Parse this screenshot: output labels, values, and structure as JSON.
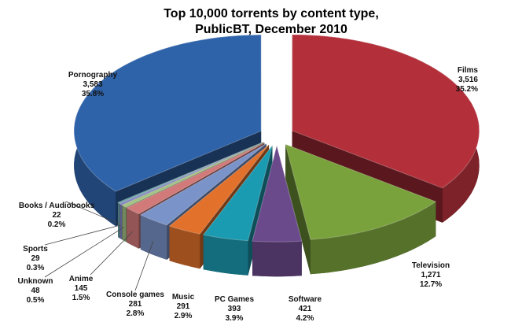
{
  "chart_data": {
    "type": "pie3d",
    "title": [
      "Top 10,000 torrents by content type,",
      "PublicBT, December 2010"
    ],
    "categories": [
      "Films",
      "Television",
      "Software",
      "PC Games",
      "Music",
      "Console games",
      "Anime",
      "Unknown",
      "Sports",
      "Books / Audiobooks",
      "Pornography"
    ],
    "values": [
      3516,
      1271,
      421,
      393,
      291,
      281,
      145,
      48,
      29,
      22,
      3583
    ],
    "value_labels": [
      "3,516",
      "1,271",
      "421",
      "393",
      "291",
      "281",
      "145",
      "48",
      "29",
      "22",
      "3,583"
    ],
    "percent_labels": [
      "35.2%",
      "12.7%",
      "4.2%",
      "3.9%",
      "2.9%",
      "2.8%",
      "1.5%",
      "0.5%",
      "0.3%",
      "0.2%",
      "35.8%"
    ],
    "colors": [
      "#b3303b",
      "#7aa23c",
      "#6b4a8c",
      "#1b9bb1",
      "#e2712b",
      "#7a93c9",
      "#d27a7a",
      "#a3c283",
      "#8484c2",
      "#62a3a3",
      "#2f63a9"
    ]
  }
}
